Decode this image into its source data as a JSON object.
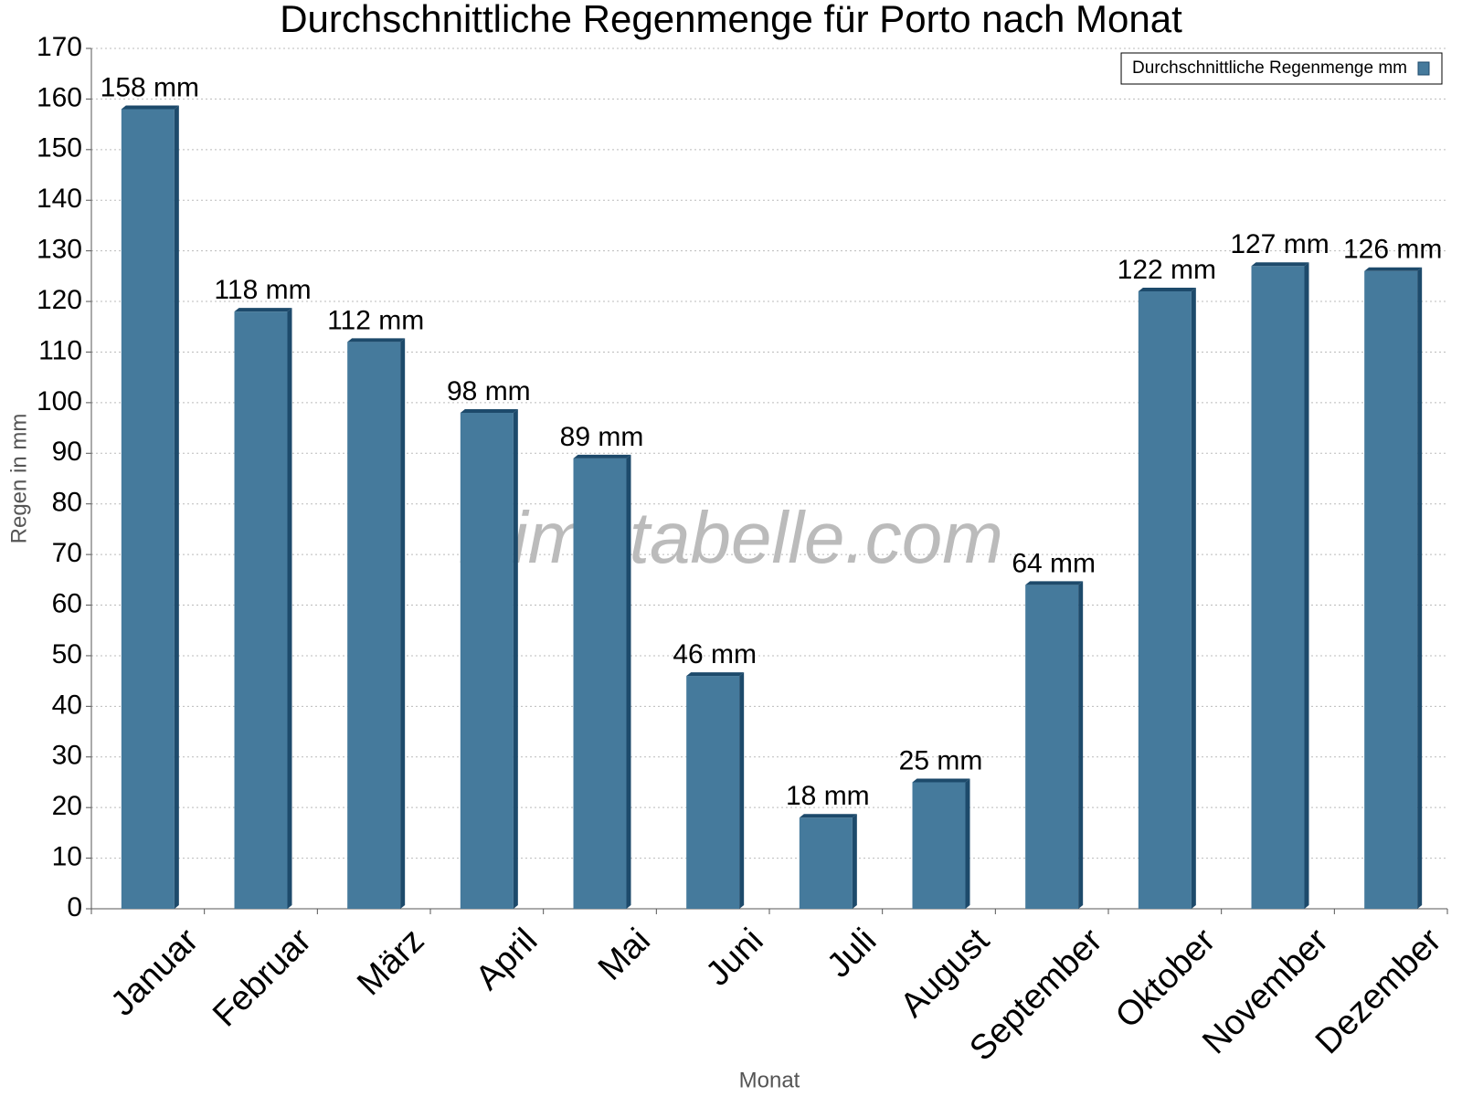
{
  "chart_data": {
    "type": "bar",
    "title": "Durchschnittliche Regenmenge für Porto nach Monat",
    "x_label": "Monat",
    "y_label": "Regen in mm",
    "watermark": "klimatabelle.com",
    "categories": [
      "Januar",
      "Februar",
      "März",
      "April",
      "Mai",
      "Juni",
      "Juli",
      "August",
      "September",
      "Oktober",
      "November",
      "Dezember"
    ],
    "series": [
      {
        "name": "Durchschnittliche Regenmenge mm",
        "color": "#457a9c",
        "values": [
          158,
          118,
          112,
          98,
          89,
          46,
          18,
          25,
          64,
          122,
          127,
          126
        ],
        "value_labels": [
          "158 mm",
          "118 mm",
          "112 mm",
          "98 mm",
          "89 mm",
          "46 mm",
          "18 mm",
          "25 mm",
          "64 mm",
          "122 mm",
          "127 mm",
          "126 mm"
        ]
      }
    ],
    "ylim": [
      0,
      170
    ],
    "yticks": [
      0,
      10,
      20,
      30,
      40,
      50,
      60,
      70,
      80,
      90,
      100,
      110,
      120,
      130,
      140,
      150,
      160,
      170
    ],
    "grid": true,
    "legend": "top-right"
  }
}
